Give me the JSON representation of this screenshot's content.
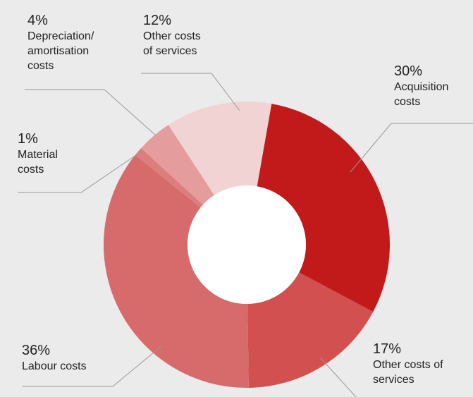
{
  "chart_data": {
    "type": "pie",
    "variant": "donut",
    "slices": [
      {
        "pct_label": "30%",
        "label": "Acquisition\ncosts",
        "value": 30,
        "color": "#c21a1a"
      },
      {
        "pct_label": "17%",
        "label": "Other costs of\nservices",
        "value": 17,
        "color": "#d35050"
      },
      {
        "pct_label": "36%",
        "label": "Labour costs",
        "value": 36,
        "color": "#d76b6b"
      },
      {
        "pct_label": "1%",
        "label": "Material\ncosts",
        "value": 1,
        "color": "#dd7e7e"
      },
      {
        "pct_label": "4%",
        "label": "Depreciation/\namortisation\ncosts",
        "value": 4,
        "color": "#e59c9c"
      },
      {
        "pct_label": "12%",
        "label": "Other costs\nof services",
        "value": 12,
        "color": "#f2d3d3"
      }
    ],
    "leader_line_color": "#999999",
    "hole_color": "#ffffff"
  }
}
